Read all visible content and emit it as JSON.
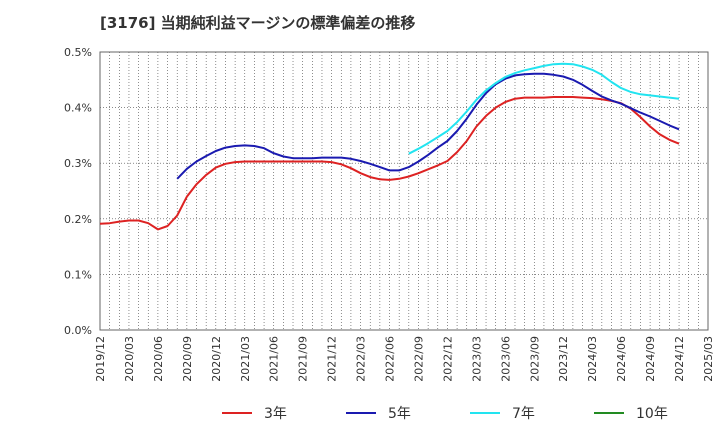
{
  "chart_data": {
    "type": "line",
    "title": "[3176]  当期純利益マージンの標準偏差の推移",
    "xlabel": "",
    "ylabel": "",
    "x_ticks": [
      "2019/12",
      "2020/03",
      "2020/06",
      "2020/09",
      "2020/12",
      "2021/03",
      "2021/06",
      "2021/09",
      "2021/12",
      "2022/03",
      "2022/06",
      "2022/09",
      "2022/12",
      "2023/03",
      "2023/06",
      "2023/09",
      "2023/12",
      "2024/03",
      "2024/06",
      "2024/09",
      "2024/12",
      "2025/03"
    ],
    "y_ticks": [
      "0.0%",
      "0.1%",
      "0.2%",
      "0.3%",
      "0.4%",
      "0.5%"
    ],
    "ylim": [
      0,
      0.5
    ],
    "grid": true,
    "legend_position": "bottom",
    "series": [
      {
        "name": "3年",
        "color": "#dd2222",
        "points": [
          [
            "2019/12",
            0.191
          ],
          [
            "2020/01",
            0.192
          ],
          [
            "2020/02",
            0.195
          ],
          [
            "2020/03",
            0.197
          ],
          [
            "2020/04",
            0.197
          ],
          [
            "2020/05",
            0.192
          ],
          [
            "2020/06",
            0.181
          ],
          [
            "2020/07",
            0.187
          ],
          [
            "2020/08",
            0.206
          ],
          [
            "2020/09",
            0.24
          ],
          [
            "2020/10",
            0.262
          ],
          [
            "2020/11",
            0.279
          ],
          [
            "2020/12",
            0.292
          ],
          [
            "2021/01",
            0.299
          ],
          [
            "2021/02",
            0.302
          ],
          [
            "2021/03",
            0.303
          ],
          [
            "2021/04",
            0.303
          ],
          [
            "2021/05",
            0.303
          ],
          [
            "2021/06",
            0.303
          ],
          [
            "2021/07",
            0.303
          ],
          [
            "2021/08",
            0.303
          ],
          [
            "2021/09",
            0.303
          ],
          [
            "2021/10",
            0.303
          ],
          [
            "2021/11",
            0.303
          ],
          [
            "2021/12",
            0.302
          ],
          [
            "2022/01",
            0.298
          ],
          [
            "2022/02",
            0.291
          ],
          [
            "2022/03",
            0.282
          ],
          [
            "2022/04",
            0.275
          ],
          [
            "2022/05",
            0.271
          ],
          [
            "2022/06",
            0.27
          ],
          [
            "2022/07",
            0.272
          ],
          [
            "2022/08",
            0.276
          ],
          [
            "2022/09",
            0.282
          ],
          [
            "2022/10",
            0.289
          ],
          [
            "2022/11",
            0.296
          ],
          [
            "2022/12",
            0.304
          ],
          [
            "2023/01",
            0.32
          ],
          [
            "2023/02",
            0.34
          ],
          [
            "2023/03",
            0.366
          ],
          [
            "2023/04",
            0.385
          ],
          [
            "2023/05",
            0.4
          ],
          [
            "2023/06",
            0.41
          ],
          [
            "2023/07",
            0.416
          ],
          [
            "2023/08",
            0.418
          ],
          [
            "2023/09",
            0.418
          ],
          [
            "2023/10",
            0.418
          ],
          [
            "2023/11",
            0.419
          ],
          [
            "2023/12",
            0.419
          ],
          [
            "2024/01",
            0.419
          ],
          [
            "2024/02",
            0.418
          ],
          [
            "2024/03",
            0.417
          ],
          [
            "2024/04",
            0.415
          ],
          [
            "2024/05",
            0.412
          ],
          [
            "2024/06",
            0.408
          ],
          [
            "2024/07",
            0.398
          ],
          [
            "2024/08",
            0.383
          ],
          [
            "2024/09",
            0.366
          ],
          [
            "2024/10",
            0.352
          ],
          [
            "2024/11",
            0.342
          ],
          [
            "2024/12",
            0.335
          ]
        ]
      },
      {
        "name": "5年",
        "color": "#1a1ab0",
        "points": [
          [
            "2020/08",
            0.272
          ],
          [
            "2020/09",
            0.29
          ],
          [
            "2020/10",
            0.303
          ],
          [
            "2020/11",
            0.313
          ],
          [
            "2020/12",
            0.322
          ],
          [
            "2021/01",
            0.328
          ],
          [
            "2021/02",
            0.331
          ],
          [
            "2021/03",
            0.332
          ],
          [
            "2021/04",
            0.331
          ],
          [
            "2021/05",
            0.327
          ],
          [
            "2021/06",
            0.318
          ],
          [
            "2021/07",
            0.312
          ],
          [
            "2021/08",
            0.309
          ],
          [
            "2021/09",
            0.309
          ],
          [
            "2021/10",
            0.309
          ],
          [
            "2021/11",
            0.31
          ],
          [
            "2021/12",
            0.31
          ],
          [
            "2022/01",
            0.31
          ],
          [
            "2022/02",
            0.308
          ],
          [
            "2022/03",
            0.304
          ],
          [
            "2022/04",
            0.299
          ],
          [
            "2022/05",
            0.293
          ],
          [
            "2022/06",
            0.287
          ],
          [
            "2022/07",
            0.287
          ],
          [
            "2022/08",
            0.293
          ],
          [
            "2022/09",
            0.303
          ],
          [
            "2022/10",
            0.315
          ],
          [
            "2022/11",
            0.328
          ],
          [
            "2022/12",
            0.34
          ],
          [
            "2023/01",
            0.358
          ],
          [
            "2023/02",
            0.38
          ],
          [
            "2023/03",
            0.405
          ],
          [
            "2023/04",
            0.426
          ],
          [
            "2023/05",
            0.442
          ],
          [
            "2023/06",
            0.452
          ],
          [
            "2023/07",
            0.458
          ],
          [
            "2023/08",
            0.46
          ],
          [
            "2023/09",
            0.461
          ],
          [
            "2023/10",
            0.461
          ],
          [
            "2023/11",
            0.459
          ],
          [
            "2023/12",
            0.456
          ],
          [
            "2024/01",
            0.45
          ],
          [
            "2024/02",
            0.441
          ],
          [
            "2024/03",
            0.43
          ],
          [
            "2024/04",
            0.42
          ],
          [
            "2024/05",
            0.413
          ],
          [
            "2024/06",
            0.407
          ],
          [
            "2024/07",
            0.399
          ],
          [
            "2024/08",
            0.391
          ],
          [
            "2024/09",
            0.384
          ],
          [
            "2024/10",
            0.376
          ],
          [
            "2024/11",
            0.368
          ],
          [
            "2024/12",
            0.361
          ]
        ]
      },
      {
        "name": "7年",
        "color": "#22e4f0",
        "points": [
          [
            "2022/08",
            0.317
          ],
          [
            "2022/09",
            0.326
          ],
          [
            "2022/10",
            0.336
          ],
          [
            "2022/11",
            0.347
          ],
          [
            "2022/12",
            0.358
          ],
          [
            "2023/01",
            0.374
          ],
          [
            "2023/02",
            0.393
          ],
          [
            "2023/03",
            0.414
          ],
          [
            "2023/04",
            0.431
          ],
          [
            "2023/05",
            0.444
          ],
          [
            "2023/06",
            0.455
          ],
          [
            "2023/07",
            0.462
          ],
          [
            "2023/08",
            0.467
          ],
          [
            "2023/09",
            0.471
          ],
          [
            "2023/10",
            0.475
          ],
          [
            "2023/11",
            0.478
          ],
          [
            "2023/12",
            0.479
          ],
          [
            "2024/01",
            0.478
          ],
          [
            "2024/02",
            0.474
          ],
          [
            "2024/03",
            0.468
          ],
          [
            "2024/04",
            0.459
          ],
          [
            "2024/05",
            0.446
          ],
          [
            "2024/06",
            0.435
          ],
          [
            "2024/07",
            0.428
          ],
          [
            "2024/08",
            0.424
          ],
          [
            "2024/09",
            0.422
          ],
          [
            "2024/10",
            0.42
          ],
          [
            "2024/11",
            0.418
          ],
          [
            "2024/12",
            0.416
          ]
        ]
      },
      {
        "name": "10年",
        "color": "#228b22",
        "points": []
      }
    ]
  }
}
